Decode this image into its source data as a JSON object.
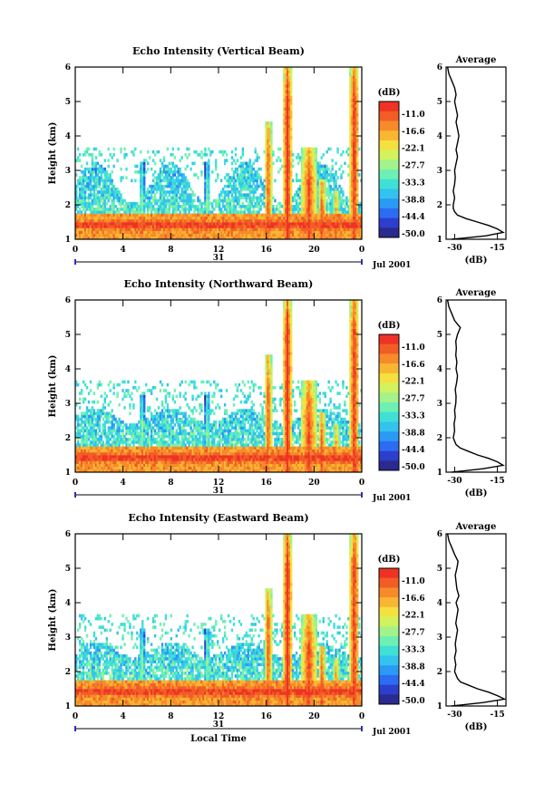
{
  "chart_data": [
    {
      "type": "heatmap",
      "title": "Echo Intensity (Vertical Beam)",
      "ylabel": "Height (km)",
      "x_ticks": [
        "0",
        "4",
        "8",
        "12",
        "16",
        "20",
        "0"
      ],
      "xlim_hours": [
        0,
        24
      ],
      "ylim": [
        1,
        6
      ],
      "y_ticks": [
        "1",
        "2",
        "3",
        "4",
        "5",
        "6"
      ],
      "date_day": "31",
      "date_label": "Jul 2001",
      "colorbar": {
        "unit": "(dB)",
        "ticks": [
          "-11.0",
          "-16.6",
          "-22.1",
          "-27.7",
          "-33.3",
          "-38.8",
          "-44.4",
          "-50.0"
        ]
      },
      "profile": {
        "title": "Average",
        "xlabel": "(dB)",
        "x_ticks": [
          "-30",
          "-15"
        ],
        "xlim": [
          -33,
          -12
        ],
        "y": [
          1.0,
          1.1,
          1.2,
          1.3,
          1.4,
          1.5,
          1.6,
          1.7,
          1.8,
          1.9,
          2.0,
          2.2,
          2.4,
          2.6,
          2.8,
          3.0,
          3.2,
          3.4,
          3.6,
          3.8,
          4.0,
          4.2,
          4.4,
          4.6,
          4.8,
          5.0,
          5.2,
          5.4,
          5.6,
          5.8,
          6.0
        ],
        "x": [
          -31,
          -19,
          -13,
          -15,
          -18,
          -22,
          -26,
          -29,
          -30,
          -30.5,
          -30.5,
          -30,
          -30.5,
          -30,
          -29.8,
          -30,
          -29.5,
          -29,
          -29.5,
          -29,
          -28.5,
          -29,
          -29.5,
          -29,
          -29.5,
          -30,
          -29.5,
          -30,
          -31,
          -32,
          -32.5
        ]
      }
    },
    {
      "type": "heatmap",
      "title": "Echo Intensity (Northward Beam)",
      "ylabel": "Height (km)",
      "x_ticks": [
        "0",
        "4",
        "8",
        "12",
        "16",
        "20",
        "0"
      ],
      "xlim_hours": [
        0,
        24
      ],
      "ylim": [
        1,
        6
      ],
      "y_ticks": [
        "1",
        "2",
        "3",
        "4",
        "5",
        "6"
      ],
      "date_day": "31",
      "date_label": "Jul 2001",
      "colorbar": {
        "unit": "(dB)",
        "ticks": [
          "-11.0",
          "-16.6",
          "-22.1",
          "-27.7",
          "-33.3",
          "-38.8",
          "-44.4",
          "-50.0"
        ]
      },
      "profile": {
        "title": "Average",
        "xlabel": "(dB)",
        "x_ticks": [
          "-30",
          "-15"
        ],
        "xlim": [
          -33,
          -12
        ],
        "y": [
          1.0,
          1.1,
          1.2,
          1.3,
          1.4,
          1.5,
          1.6,
          1.7,
          1.8,
          1.9,
          2.0,
          2.2,
          2.4,
          2.6,
          2.8,
          3.0,
          3.2,
          3.4,
          3.6,
          3.8,
          4.0,
          4.2,
          4.4,
          4.6,
          4.8,
          5.0,
          5.2,
          5.4,
          5.6,
          5.8,
          6.0
        ],
        "x": [
          -31,
          -20,
          -13,
          -15,
          -18,
          -22,
          -25,
          -28,
          -29.5,
          -30,
          -30.5,
          -30,
          -30.2,
          -29.8,
          -30,
          -29.6,
          -29.5,
          -29.8,
          -29.3,
          -29,
          -29.5,
          -29.2,
          -29.6,
          -29.4,
          -29.6,
          -29,
          -28,
          -30,
          -31,
          -32,
          -32.5
        ]
      }
    },
    {
      "type": "heatmap",
      "title": "Echo Intensity (Eastward Beam)",
      "ylabel": "Height (km)",
      "xlabel": "Local Time",
      "x_ticks": [
        "0",
        "4",
        "8",
        "12",
        "16",
        "20",
        "0"
      ],
      "xlim_hours": [
        0,
        24
      ],
      "ylim": [
        1,
        6
      ],
      "y_ticks": [
        "1",
        "2",
        "3",
        "4",
        "5",
        "6"
      ],
      "date_day": "31",
      "date_label": "Jul 2001",
      "colorbar": {
        "unit": "(dB)",
        "ticks": [
          "-11.0",
          "-16.6",
          "-22.1",
          "-27.7",
          "-33.3",
          "-38.8",
          "-44.4",
          "-50.0"
        ]
      },
      "profile": {
        "title": "Average",
        "xlabel": "(dB)",
        "x_ticks": [
          "-30",
          "-15"
        ],
        "xlim": [
          -33,
          -12
        ],
        "y": [
          1.0,
          1.1,
          1.2,
          1.3,
          1.4,
          1.5,
          1.6,
          1.7,
          1.8,
          1.9,
          2.0,
          2.2,
          2.4,
          2.6,
          2.8,
          3.0,
          3.2,
          3.4,
          3.6,
          3.8,
          4.0,
          4.2,
          4.4,
          4.6,
          4.8,
          5.0,
          5.2,
          5.4,
          5.6,
          5.8,
          6.0
        ],
        "x": [
          -31,
          -20,
          -12.5,
          -15,
          -18,
          -22,
          -25,
          -28,
          -29,
          -29.5,
          -30,
          -29.6,
          -30,
          -29.5,
          -29.8,
          -29.4,
          -29,
          -29.6,
          -29.2,
          -28.8,
          -29.5,
          -28.5,
          -29.2,
          -29.5,
          -29.8,
          -29.2,
          -28.8,
          -30,
          -31,
          -32,
          -32.5
        ]
      }
    }
  ],
  "colorscale": [
    "#2b2a8f",
    "#2c3fcc",
    "#2b6cf2",
    "#2b9af5",
    "#33c3ee",
    "#3fe0d6",
    "#6ef0b4",
    "#a3f38a",
    "#d2f25e",
    "#f4e13f",
    "#f9b632",
    "#f78a2b",
    "#f25d26",
    "#ee3325"
  ]
}
